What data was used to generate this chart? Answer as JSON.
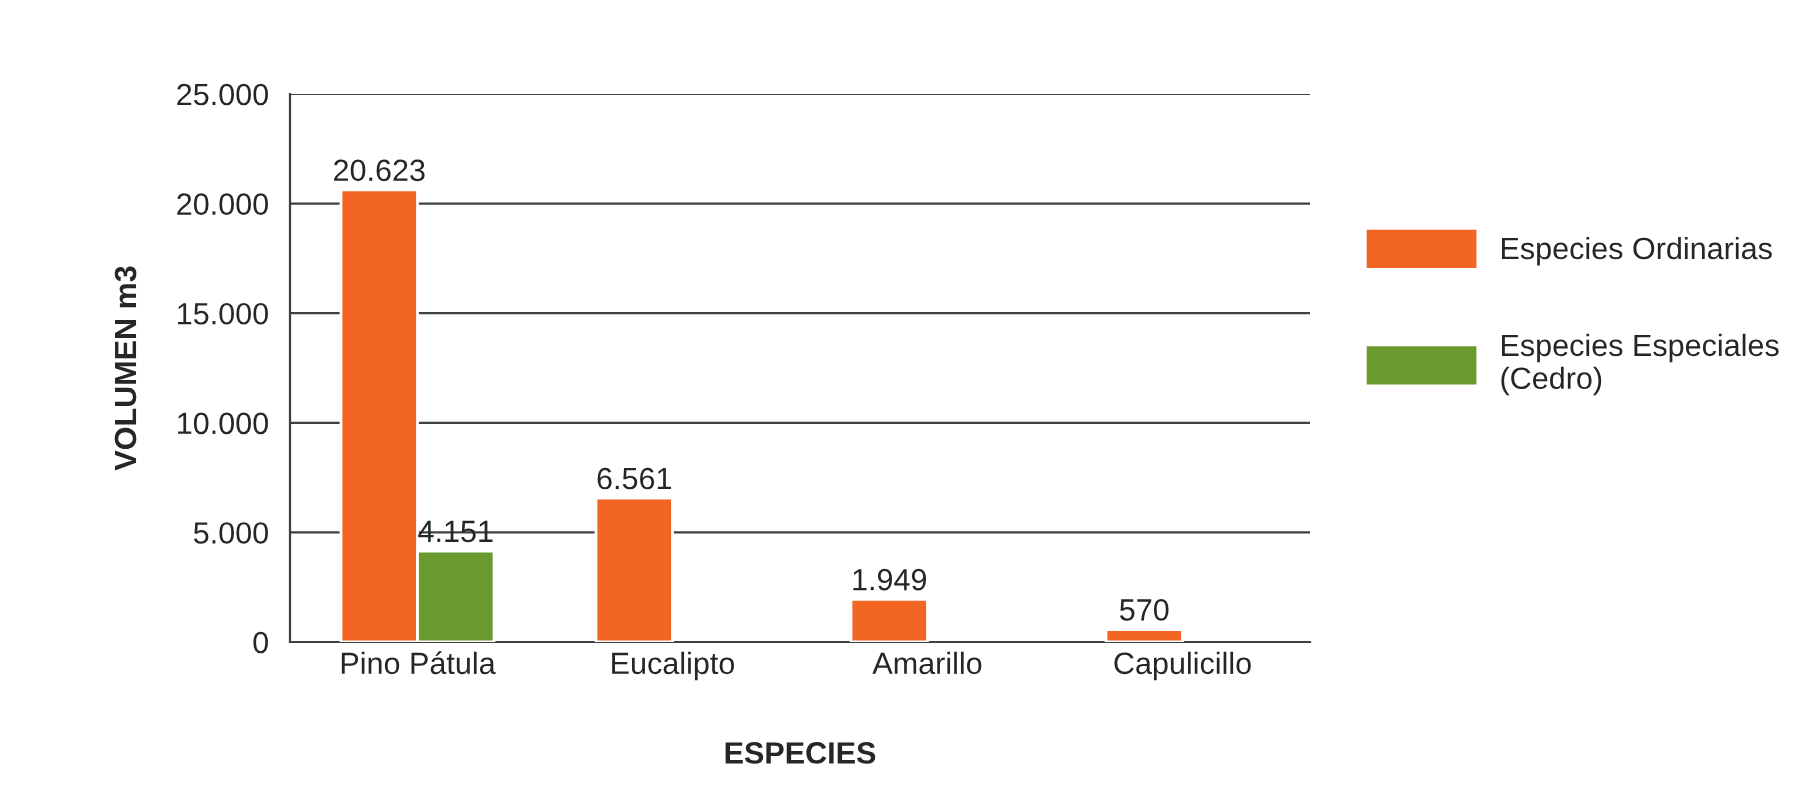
{
  "chart_data": {
    "type": "bar",
    "xlabel": "ESPECIES",
    "ylabel": "VOLUMEN m3",
    "categories": [
      "Pino Pátula",
      "Eucalipto",
      "Amarillo",
      "Capulicillo"
    ],
    "series": [
      {
        "name": "Especies Ordinarias",
        "color": "#f26522",
        "values": [
          20623,
          6561,
          1949,
          570
        ],
        "value_labels": [
          "20.623",
          "6.561",
          "1.949",
          "570"
        ]
      },
      {
        "name": "Especies Especiales\n(Cedro)",
        "color": "#6a9a2e",
        "values": [
          4151,
          null,
          null,
          null
        ],
        "value_labels": [
          "4.151",
          null,
          null,
          null
        ]
      }
    ],
    "ylim": [
      0,
      25000
    ],
    "yticks": [
      0,
      {
        "value": 5000,
        "label": "5.000"
      },
      {
        "value": 10000,
        "label": "10.000"
      },
      {
        "value": 15000,
        "label": "15.000"
      },
      {
        "value": 20000,
        "label": "20.000"
      },
      {
        "value": 25000,
        "label": "25.000"
      }
    ],
    "grid": "y",
    "legend": "right"
  }
}
